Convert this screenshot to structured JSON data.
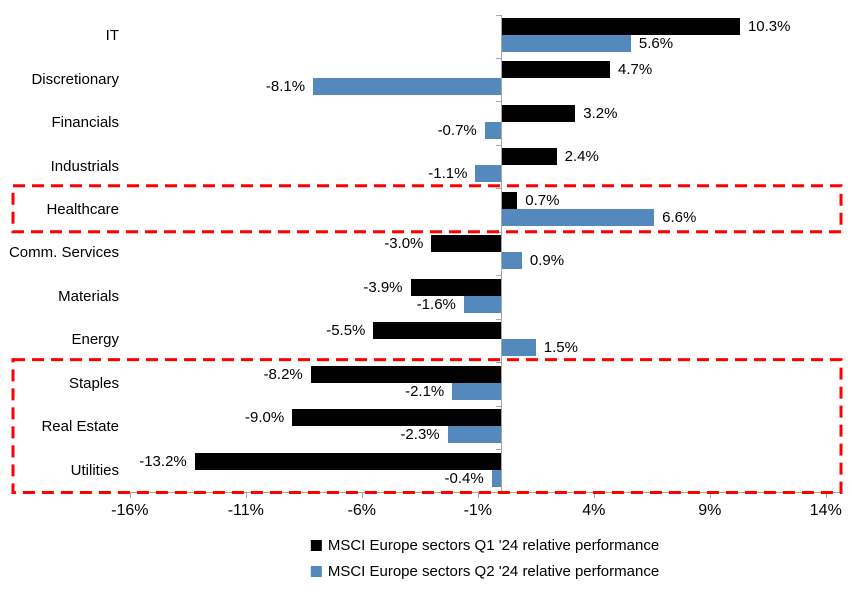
{
  "chart_data": {
    "type": "bar",
    "orientation": "horizontal",
    "title": "",
    "xlabel": "",
    "ylabel": "",
    "grid": false,
    "legend_position": "bottom",
    "categories": [
      "IT",
      "Discretionary",
      "Financials",
      "Industrials",
      "Healthcare",
      "Comm. Services",
      "Materials",
      "Energy",
      "Staples",
      "Real Estate",
      "Utilities"
    ],
    "series": [
      {
        "name": "MSCI Europe sectors Q1 '24 relative performance",
        "color": "#000000",
        "values": [
          10.3,
          4.7,
          3.2,
          2.4,
          0.7,
          -3.0,
          -3.9,
          -5.5,
          -8.2,
          -9.0,
          -13.2
        ],
        "labels": [
          "10.3%",
          "4.7%",
          "3.2%",
          "2.4%",
          "0.7%",
          "-3.0%",
          "-3.9%",
          "-5.5%",
          "-8.2%",
          "-9.0%",
          "-13.2%"
        ]
      },
      {
        "name": "MSCI Europe sectors Q2 '24 relative performance",
        "color": "#5389BD",
        "values": [
          5.6,
          -8.1,
          -0.7,
          -1.1,
          6.6,
          0.9,
          -1.6,
          1.5,
          -2.1,
          -2.3,
          -0.4
        ],
        "labels": [
          "5.6%",
          "-8.1%",
          "-0.7%",
          "-1.1%",
          "6.6%",
          "0.9%",
          "-1.6%",
          "1.5%",
          "-2.1%",
          "-2.3%",
          "-0.4%"
        ]
      }
    ],
    "xlim": [
      -16,
      14
    ],
    "xticks": {
      "values": [
        -16,
        -11,
        -6,
        -1,
        4,
        9,
        14
      ],
      "labels": [
        "-16%",
        "-11%",
        "-6%",
        "-1%",
        "4%",
        "9%",
        "14%"
      ]
    },
    "highlights": [
      {
        "categories": [
          "Healthcare"
        ],
        "start_index": 4,
        "count": 1,
        "color": "#FF0000"
      },
      {
        "categories": [
          "Staples",
          "Real Estate",
          "Utilities"
        ],
        "start_index": 8,
        "count": 3,
        "color": "#FF0000"
      }
    ],
    "axis_color": "#A6A6A6"
  }
}
